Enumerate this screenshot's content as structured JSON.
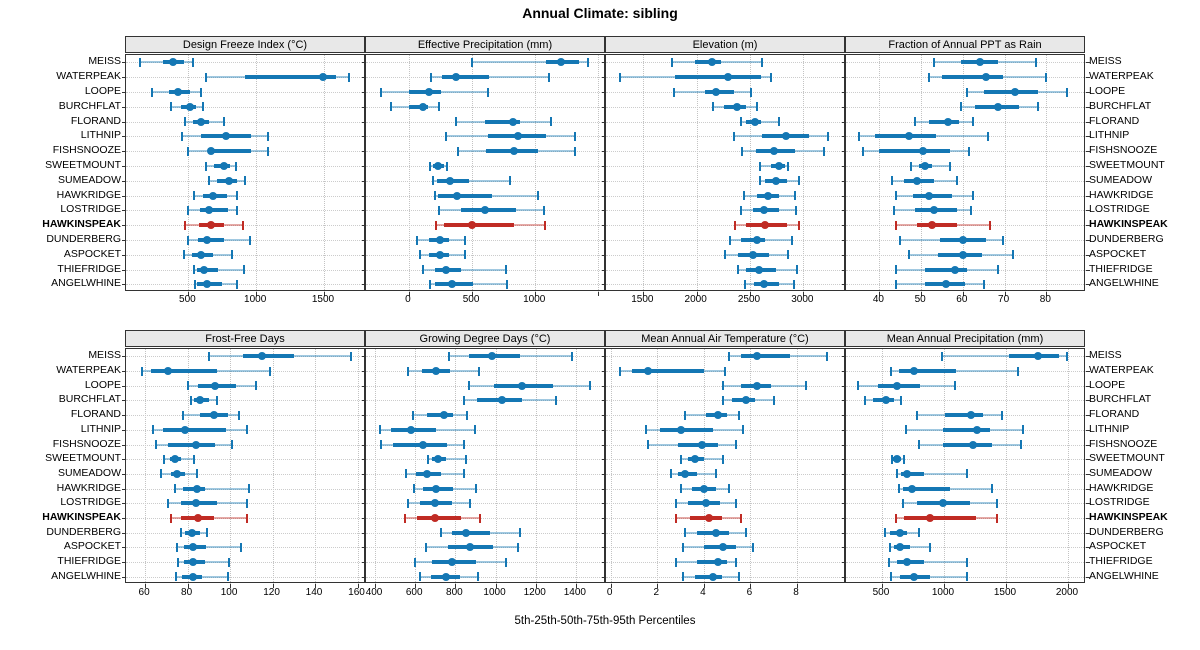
{
  "title": "Annual Climate: sibling",
  "footer": "5th-25th-50th-75th-95th Percentiles",
  "colors": {
    "normal": "#1477B4",
    "highlight": "#C02B24"
  },
  "sites": [
    "MEISS",
    "WATERPEAK",
    "LOOPE",
    "BURCHFLAT",
    "FLORAND",
    "LITHNIP",
    "FISHSNOOZE",
    "SWEETMOUNT",
    "SUMEADOW",
    "HAWKRIDGE",
    "LOSTRIDGE",
    "HAWKINSPEAK",
    "DUNDERBERG",
    "ASPOCKET",
    "THIEFRIDGE",
    "ANGELWHINE"
  ],
  "highlight_site": "HAWKINSPEAK",
  "chart_data": {
    "type": "scatter",
    "variant": "trellis dot-whisker plot; per row the 5 values are the 5th, 25th, 50th, 75th and 95th percentiles",
    "grid": "2 rows x 4 columns of panels; site labels repeated on left and right of each panel row",
    "panels": [
      {
        "title": "Design Freeze Index (°C)",
        "grid_row": 0,
        "xmin": 40,
        "xmax": 1810,
        "ticks": [
          500,
          1000,
          1500
        ],
        "extra_ticks": [],
        "values": [
          [
            140,
            310,
            390,
            470,
            535
          ],
          [
            630,
            920,
            1490,
            1590,
            1685
          ],
          [
            230,
            355,
            420,
            515,
            590
          ],
          [
            370,
            445,
            510,
            555,
            605
          ],
          [
            475,
            535,
            590,
            650,
            760
          ],
          [
            450,
            595,
            775,
            960,
            1085
          ],
          [
            495,
            650,
            665,
            965,
            1085
          ],
          [
            630,
            690,
            760,
            805,
            850
          ],
          [
            650,
            710,
            800,
            855,
            915
          ],
          [
            540,
            610,
            685,
            785,
            860
          ],
          [
            495,
            585,
            655,
            795,
            860
          ],
          [
            475,
            575,
            665,
            760,
            900
          ],
          [
            500,
            570,
            640,
            760,
            955
          ],
          [
            470,
            530,
            595,
            680,
            825
          ],
          [
            540,
            565,
            615,
            715,
            910
          ],
          [
            550,
            565,
            640,
            745,
            860
          ]
        ]
      },
      {
        "title": "Effective Precipitation (mm)",
        "grid_row": 0,
        "xmin": -340,
        "xmax": 1560,
        "ticks": [
          0,
          500,
          1000
        ],
        "extra_ticks": [
          1500
        ],
        "values": [
          [
            500,
            1085,
            1200,
            1350,
            1420
          ],
          [
            175,
            265,
            370,
            635,
            1110
          ],
          [
            -225,
            0,
            160,
            255,
            625
          ],
          [
            -145,
            0,
            110,
            150,
            240
          ],
          [
            370,
            605,
            825,
            880,
            1125
          ],
          [
            295,
            625,
            860,
            1085,
            1315
          ],
          [
            385,
            610,
            835,
            1025,
            1315
          ],
          [
            170,
            190,
            230,
            275,
            300
          ],
          [
            190,
            220,
            325,
            475,
            800
          ],
          [
            205,
            230,
            380,
            660,
            1025
          ],
          [
            235,
            415,
            605,
            845,
            1070
          ],
          [
            215,
            280,
            500,
            835,
            1080
          ],
          [
            65,
            160,
            245,
            320,
            440
          ],
          [
            90,
            160,
            245,
            315,
            440
          ],
          [
            115,
            205,
            295,
            415,
            765
          ],
          [
            170,
            205,
            340,
            505,
            775
          ]
        ]
      },
      {
        "title": "Elevation (m)",
        "grid_row": 0,
        "xmin": 1150,
        "xmax": 3400,
        "ticks": [
          1500,
          2000,
          2500,
          3000
        ],
        "extra_ticks": [],
        "values": [
          [
            1770,
            1980,
            2140,
            2230,
            2615
          ],
          [
            1285,
            1795,
            2295,
            2600,
            2700
          ],
          [
            1790,
            2075,
            2180,
            2350,
            2510
          ],
          [
            2155,
            2260,
            2375,
            2460,
            2565
          ],
          [
            2415,
            2460,
            2545,
            2600,
            2770
          ],
          [
            2350,
            2615,
            2840,
            3050,
            3230
          ],
          [
            2425,
            2555,
            2725,
            2925,
            3190
          ],
          [
            2590,
            2695,
            2775,
            2830,
            2860
          ],
          [
            2590,
            2645,
            2745,
            2850,
            2955
          ],
          [
            2445,
            2570,
            2670,
            2770,
            2925
          ],
          [
            2415,
            2525,
            2630,
            2770,
            2930
          ],
          [
            2360,
            2460,
            2640,
            2850,
            2955
          ],
          [
            2310,
            2415,
            2570,
            2645,
            2895
          ],
          [
            2270,
            2385,
            2525,
            2680,
            2860
          ],
          [
            2385,
            2460,
            2580,
            2740,
            2945
          ],
          [
            2455,
            2540,
            2630,
            2770,
            2910
          ]
        ]
      },
      {
        "title": "Fraction of Annual PPT as Rain",
        "grid_row": 0,
        "xmin": 32,
        "xmax": 89.5,
        "ticks": [
          40,
          50,
          60,
          70,
          80
        ],
        "extra_ticks": [],
        "values": [
          [
            53,
            59.5,
            64,
            68.5,
            77.5
          ],
          [
            52,
            55,
            65.5,
            69.5,
            80
          ],
          [
            61,
            65,
            72.5,
            78,
            85
          ],
          [
            59.5,
            63,
            68.5,
            73.5,
            78
          ],
          [
            48.5,
            52,
            56.5,
            59,
            62.5
          ],
          [
            35,
            39,
            47,
            53.5,
            66
          ],
          [
            36,
            40,
            50.5,
            57,
            61.5
          ],
          [
            47.5,
            49.5,
            51,
            52.5,
            57
          ],
          [
            43,
            46,
            49,
            53,
            58.5
          ],
          [
            44,
            48,
            52,
            57.5,
            62.5
          ],
          [
            43.5,
            48.5,
            53,
            58.5,
            62
          ],
          [
            44,
            49,
            52.5,
            58.5,
            66.5
          ],
          [
            45,
            54.5,
            60,
            65.5,
            69.5
          ],
          [
            47,
            54,
            60,
            64.5,
            72
          ],
          [
            44,
            51,
            58,
            61,
            68.5
          ],
          [
            44,
            51,
            56,
            60.5,
            65
          ]
        ]
      },
      {
        "title": "Frost-Free Days",
        "grid_row": 1,
        "xmin": 51,
        "xmax": 164,
        "ticks": [
          60,
          80,
          100,
          120,
          140,
          160
        ],
        "extra_ticks": [],
        "values": [
          [
            90,
            106,
            115,
            130,
            157
          ],
          [
            58.5,
            63,
            71,
            94,
            119
          ],
          [
            80,
            85,
            93,
            103,
            112
          ],
          [
            81.5,
            83,
            86,
            90,
            94
          ],
          [
            78,
            86,
            92.5,
            99,
            104
          ],
          [
            63.5,
            68.5,
            79,
            98,
            108
          ],
          [
            65,
            71,
            84,
            93,
            101
          ],
          [
            69,
            71.5,
            74,
            77,
            83
          ],
          [
            67.5,
            72,
            75,
            79,
            84.5
          ],
          [
            74,
            78,
            84.5,
            88,
            109
          ],
          [
            71,
            77,
            84,
            94,
            108
          ],
          [
            72,
            77,
            85,
            92.5,
            108
          ],
          [
            77,
            79,
            82,
            86,
            89
          ],
          [
            75,
            78.5,
            82.5,
            88.5,
            105
          ],
          [
            75.5,
            78.5,
            82.5,
            88,
            99.5
          ],
          [
            74.5,
            77.5,
            82.5,
            87,
            99
          ]
        ]
      },
      {
        "title": "Growing Degree Days (°C)",
        "grid_row": 1,
        "xmin": 355,
        "xmax": 1550,
        "ticks": [
          400,
          600,
          800,
          1000,
          1200,
          1400
        ],
        "extra_ticks": [],
        "values": [
          [
            770,
            870,
            980,
            1120,
            1380
          ],
          [
            565,
            635,
            705,
            775,
            920
          ],
          [
            870,
            990,
            1130,
            1285,
            1470
          ],
          [
            845,
            910,
            1030,
            1130,
            1300
          ],
          [
            590,
            660,
            745,
            790,
            860
          ],
          [
            425,
            480,
            580,
            705,
            900
          ],
          [
            430,
            490,
            640,
            760,
            845
          ],
          [
            665,
            685,
            715,
            755,
            855
          ],
          [
            555,
            605,
            660,
            730,
            845
          ],
          [
            595,
            640,
            705,
            790,
            905
          ],
          [
            565,
            625,
            700,
            785,
            875
          ],
          [
            550,
            610,
            700,
            830,
            925
          ],
          [
            730,
            785,
            855,
            970,
            1120
          ],
          [
            655,
            765,
            875,
            985,
            1110
          ],
          [
            600,
            685,
            785,
            905,
            1050
          ],
          [
            625,
            680,
            755,
            825,
            915
          ]
        ]
      },
      {
        "title": "Mean Annual Air Temperature (°C)",
        "grid_row": 1,
        "xmin": -0.2,
        "xmax": 10.1,
        "ticks": [
          0,
          2,
          4,
          6,
          8
        ],
        "extra_ticks": [],
        "values": [
          [
            5.1,
            5.6,
            6.3,
            7.7,
            9.3
          ],
          [
            0.4,
            0.9,
            1.6,
            4.0,
            4.9
          ],
          [
            4.8,
            5.6,
            6.3,
            6.9,
            8.4
          ],
          [
            4.8,
            5.2,
            5.8,
            6.2,
            7.0
          ],
          [
            3.2,
            4.1,
            4.6,
            5.0,
            5.5
          ],
          [
            1.5,
            2.1,
            3.0,
            4.4,
            5.7
          ],
          [
            1.6,
            2.9,
            3.9,
            4.6,
            5.4
          ],
          [
            3.0,
            3.3,
            3.6,
            4.0,
            4.8
          ],
          [
            2.6,
            2.9,
            3.2,
            3.7,
            4.5
          ],
          [
            3.0,
            3.5,
            4.0,
            4.5,
            5.1
          ],
          [
            2.8,
            3.3,
            4.1,
            4.7,
            5.4
          ],
          [
            2.8,
            3.4,
            4.2,
            4.8,
            5.6
          ],
          [
            3.2,
            3.7,
            4.5,
            5.1,
            5.8
          ],
          [
            3.1,
            4.0,
            4.8,
            5.4,
            6.1
          ],
          [
            2.8,
            3.7,
            4.6,
            5.0,
            5.4
          ],
          [
            3.1,
            3.6,
            4.4,
            4.8,
            5.5
          ]
        ]
      },
      {
        "title": "Mean Annual Precipitation (mm)",
        "grid_row": 1,
        "xmin": 210,
        "xmax": 2145,
        "ticks": [
          500,
          1000,
          1500,
          2000
        ],
        "extra_ticks": [],
        "values": [
          [
            985,
            1525,
            1755,
            1930,
            1995
          ],
          [
            575,
            640,
            760,
            1100,
            1595
          ],
          [
            305,
            465,
            620,
            805,
            1090
          ],
          [
            360,
            430,
            530,
            600,
            655
          ],
          [
            780,
            1005,
            1220,
            1315,
            1465
          ],
          [
            690,
            990,
            1270,
            1370,
            1635
          ],
          [
            795,
            990,
            1230,
            1390,
            1620
          ],
          [
            580,
            590,
            620,
            655,
            680
          ],
          [
            625,
            655,
            700,
            840,
            1185
          ],
          [
            640,
            670,
            740,
            1050,
            1390
          ],
          [
            670,
            780,
            995,
            1210,
            1425
          ],
          [
            610,
            680,
            885,
            1255,
            1425
          ],
          [
            525,
            565,
            645,
            705,
            795
          ],
          [
            565,
            600,
            645,
            725,
            885
          ],
          [
            555,
            620,
            700,
            835,
            1185
          ],
          [
            575,
            645,
            755,
            885,
            1185
          ]
        ]
      }
    ]
  }
}
